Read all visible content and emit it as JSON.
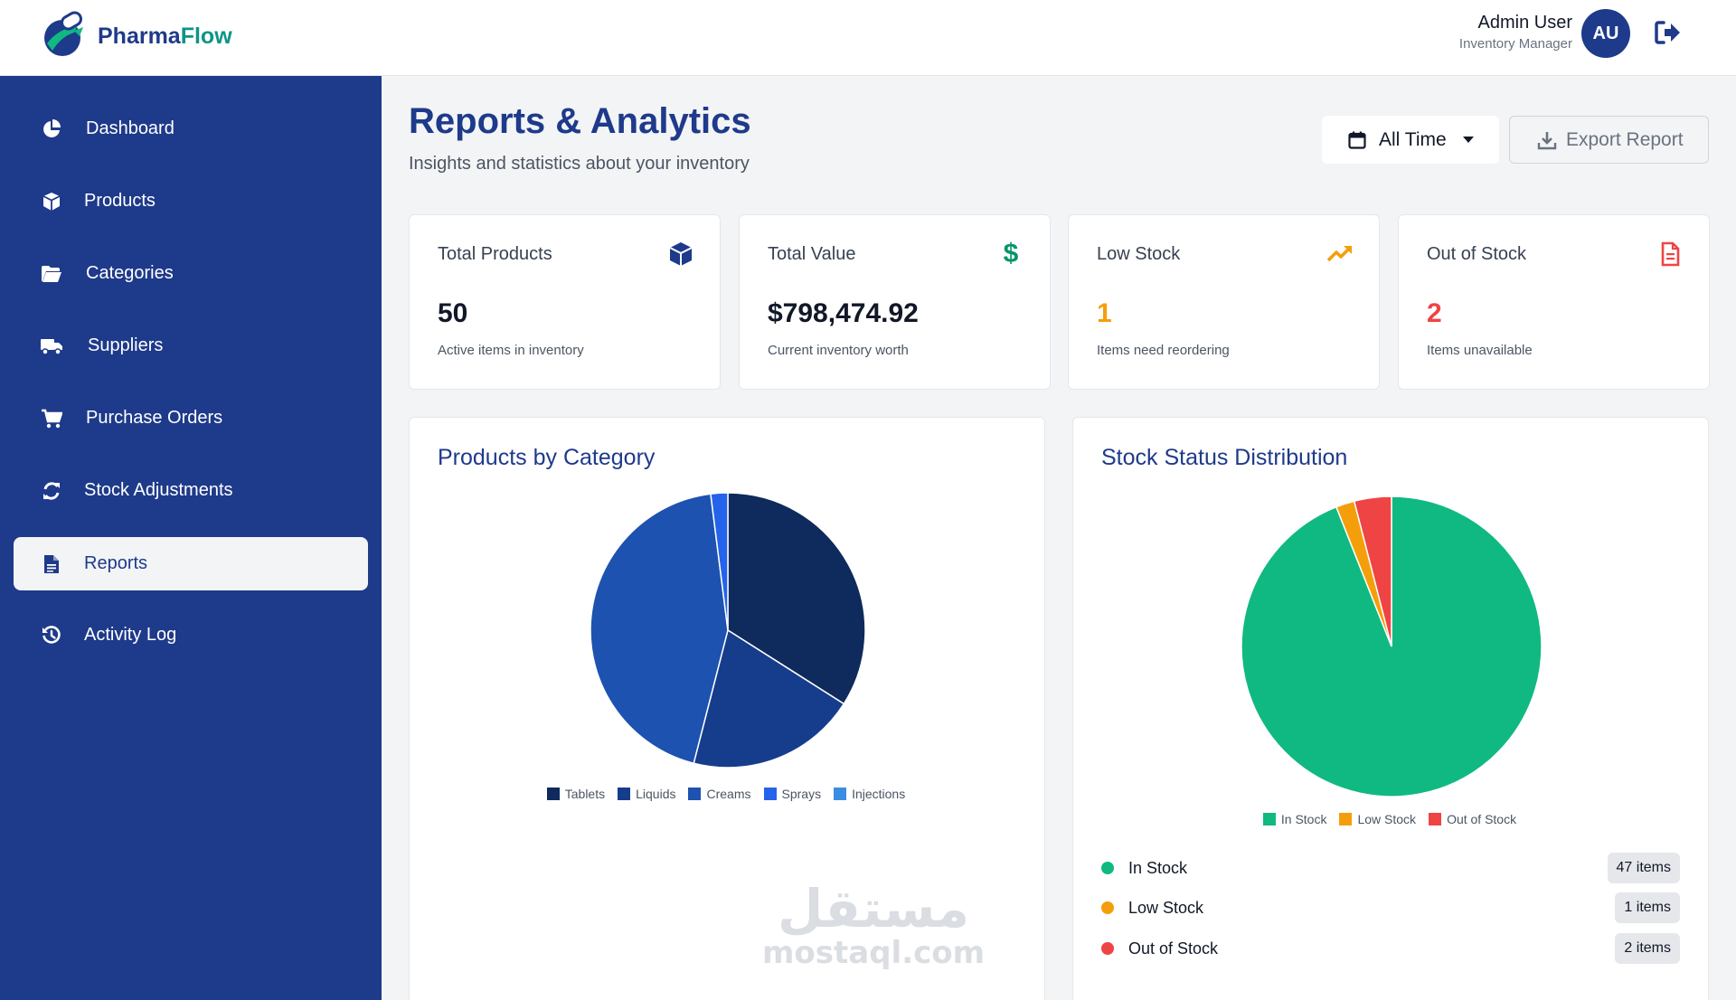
{
  "header": {
    "brand_part1": "Pharma",
    "brand_part2": "Flow",
    "user_name": "Admin User",
    "user_role": "Inventory Manager",
    "avatar_initials": "AU"
  },
  "sidebar": {
    "items": [
      {
        "label": "Dashboard",
        "icon": "pie-chart-icon",
        "active": false
      },
      {
        "label": "Products",
        "icon": "box-icon",
        "active": false
      },
      {
        "label": "Categories",
        "icon": "folder-open-icon",
        "active": false
      },
      {
        "label": "Suppliers",
        "icon": "truck-icon",
        "active": false
      },
      {
        "label": "Purchase Orders",
        "icon": "cart-icon",
        "active": false
      },
      {
        "label": "Stock Adjustments",
        "icon": "sync-icon",
        "active": false
      },
      {
        "label": "Reports",
        "icon": "file-text-icon",
        "active": true
      },
      {
        "label": "Activity Log",
        "icon": "history-icon",
        "active": false
      }
    ]
  },
  "page": {
    "title": "Reports & Analytics",
    "subtitle": "Insights and statistics about your inventory",
    "time_filter": "All Time",
    "export_label": "Export Report"
  },
  "stats": [
    {
      "label": "Total Products",
      "value": "50",
      "desc": "Active items in inventory",
      "icon": "box-icon",
      "color": "#1e3a8a"
    },
    {
      "label": "Total Value",
      "value": "$798,474.92",
      "desc": "Current inventory worth",
      "icon": "dollar-icon",
      "color": "#059669"
    },
    {
      "label": "Low Stock",
      "value": "1",
      "desc": "Items need reordering",
      "icon": "trend-up-icon",
      "color": "#f59e0b"
    },
    {
      "label": "Out of Stock",
      "value": "2",
      "desc": "Items unavailable",
      "icon": "file-alert-icon",
      "color": "#ef4444"
    }
  ],
  "chart_data": [
    {
      "type": "pie",
      "title": "Products by Category",
      "categories": [
        "Tablets",
        "Liquids",
        "Creams",
        "Sprays",
        "Injections"
      ],
      "values": [
        17,
        10,
        22,
        1,
        0
      ],
      "colors": [
        "#0f2a5c",
        "#163d8c",
        "#1d52b0",
        "#2563eb",
        "#3b8de0"
      ],
      "legend": "bottom"
    },
    {
      "type": "pie",
      "title": "Stock Status Distribution",
      "categories": [
        "In Stock",
        "Low Stock",
        "Out of Stock"
      ],
      "values": [
        47,
        1,
        2
      ],
      "colors": [
        "#10b981",
        "#f59e0b",
        "#ef4444"
      ],
      "legend": "bottom"
    }
  ],
  "status_list": [
    {
      "label": "In Stock",
      "badge": "47 items",
      "color": "#10b981"
    },
    {
      "label": "Low Stock",
      "badge": "1 items",
      "color": "#f59e0b"
    },
    {
      "label": "Out of Stock",
      "badge": "2 items",
      "color": "#ef4444"
    }
  ],
  "watermark": {
    "arabic": "مستقل",
    "latin": "mostaql.com"
  }
}
